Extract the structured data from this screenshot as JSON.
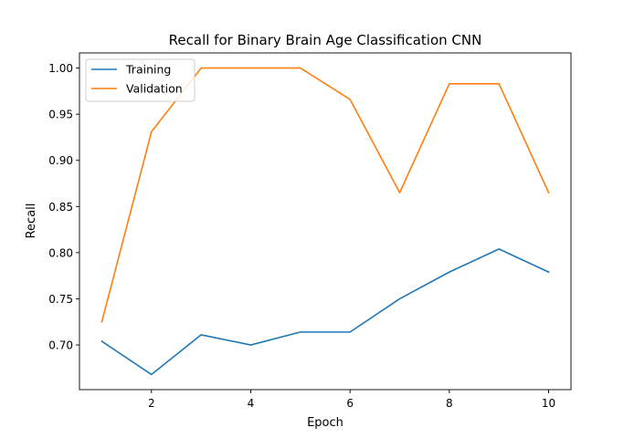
{
  "chart_data": {
    "type": "line",
    "title": "Recall for Binary Brain Age Classification CNN",
    "xlabel": "Epoch",
    "ylabel": "Recall",
    "x": [
      1,
      2,
      3,
      4,
      5,
      6,
      7,
      8,
      9,
      10
    ],
    "series": [
      {
        "name": "Training",
        "color": "#1f77b4",
        "values": [
          0.704,
          0.668,
          0.711,
          0.7,
          0.714,
          0.714,
          0.75,
          0.779,
          0.804,
          0.779
        ]
      },
      {
        "name": "Validation",
        "color": "#ff7f0e",
        "values": [
          0.725,
          0.931,
          1.0,
          1.0,
          1.0,
          0.966,
          0.865,
          0.983,
          0.983,
          0.865
        ]
      }
    ],
    "xlim": [
      0.55,
      10.45
    ],
    "ylim": [
      0.6516,
      1.0164
    ],
    "xticks": [
      2,
      4,
      6,
      8,
      10
    ],
    "xtick_labels": [
      "2",
      "4",
      "6",
      "8",
      "10"
    ],
    "yticks": [
      0.7,
      0.75,
      0.8,
      0.85,
      0.9,
      0.95,
      1.0
    ],
    "ytick_labels": [
      "0.70",
      "0.75",
      "0.80",
      "0.85",
      "0.90",
      "0.95",
      "1.00"
    ],
    "grid": false,
    "legend_position": "top-left"
  }
}
